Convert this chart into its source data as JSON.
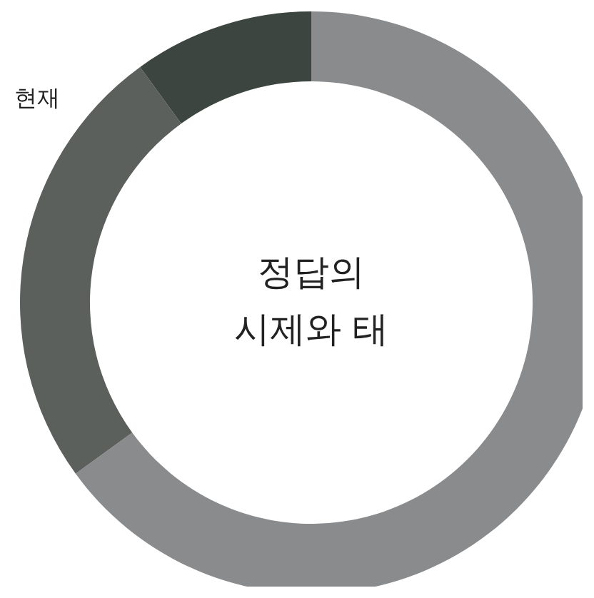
{
  "chart_data": {
    "type": "donut",
    "title": "정답의 시제와 태",
    "categories": [
      null,
      null,
      null
    ],
    "values": [
      65,
      25,
      10
    ],
    "colors": [
      "#8a8b8d",
      "#5b605d",
      "#3d4540"
    ],
    "annotations": [
      "현재"
    ]
  }
}
